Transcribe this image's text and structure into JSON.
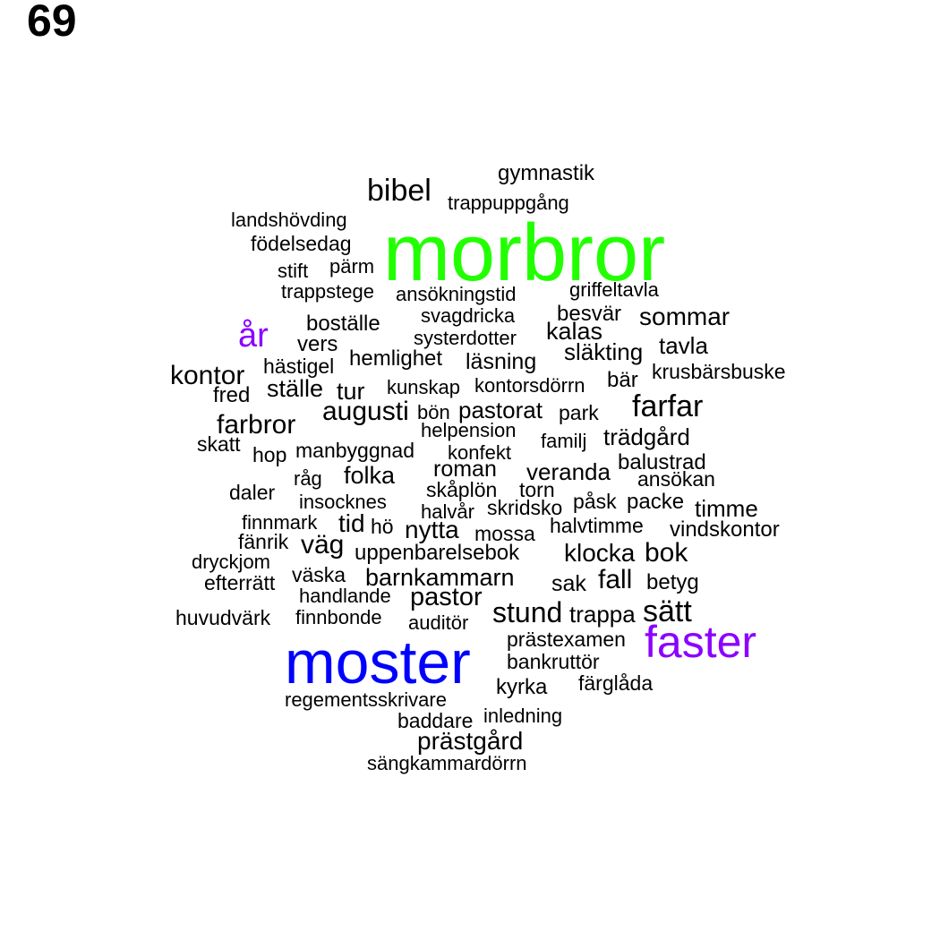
{
  "page_number": "69",
  "colors": {
    "default": "#000000",
    "green": "#22ff00",
    "blue": "#0000ff",
    "purple": "#8b00ff"
  },
  "words": [
    {
      "text": "morbror",
      "color": "green"
    },
    {
      "text": "moster",
      "color": "blue"
    },
    {
      "text": "faster",
      "color": "purple"
    },
    {
      "text": "år",
      "color": "purple"
    },
    {
      "text": "gymnastik"
    },
    {
      "text": "bibel"
    },
    {
      "text": "trappuppgång"
    },
    {
      "text": "landshövding"
    },
    {
      "text": "födelsedag"
    },
    {
      "text": "stift"
    },
    {
      "text": "pärm"
    },
    {
      "text": "trappstege"
    },
    {
      "text": "ansökningstid"
    },
    {
      "text": "griffeltavla"
    },
    {
      "text": "svagdricka"
    },
    {
      "text": "besvär"
    },
    {
      "text": "sommar"
    },
    {
      "text": "boställe"
    },
    {
      "text": "systerdotter"
    },
    {
      "text": "kalas"
    },
    {
      "text": "vers"
    },
    {
      "text": "släkting"
    },
    {
      "text": "tavla"
    },
    {
      "text": "hemlighet"
    },
    {
      "text": "läsning"
    },
    {
      "text": "hästigel"
    },
    {
      "text": "krusbärsbuske"
    },
    {
      "text": "kontor"
    },
    {
      "text": "kunskap"
    },
    {
      "text": "kontorsdörrn"
    },
    {
      "text": "bär"
    },
    {
      "text": "fred"
    },
    {
      "text": "ställe"
    },
    {
      "text": "tur"
    },
    {
      "text": "farfar"
    },
    {
      "text": "augusti"
    },
    {
      "text": "bön"
    },
    {
      "text": "pastorat"
    },
    {
      "text": "park"
    },
    {
      "text": "farbror"
    },
    {
      "text": "helpension"
    },
    {
      "text": "trädgård"
    },
    {
      "text": "skatt"
    },
    {
      "text": "familj"
    },
    {
      "text": "manbyggnad"
    },
    {
      "text": "hop"
    },
    {
      "text": "konfekt"
    },
    {
      "text": "balustrad"
    },
    {
      "text": "roman"
    },
    {
      "text": "veranda"
    },
    {
      "text": "råg"
    },
    {
      "text": "folka"
    },
    {
      "text": "ansökan"
    },
    {
      "text": "skåplön"
    },
    {
      "text": "torn"
    },
    {
      "text": "daler"
    },
    {
      "text": "insocknes"
    },
    {
      "text": "påsk"
    },
    {
      "text": "packe"
    },
    {
      "text": "halvår"
    },
    {
      "text": "skridsko"
    },
    {
      "text": "timme"
    },
    {
      "text": "finnmark"
    },
    {
      "text": "tid"
    },
    {
      "text": "hö"
    },
    {
      "text": "nytta"
    },
    {
      "text": "halvtimme"
    },
    {
      "text": "mossa"
    },
    {
      "text": "vindskontor"
    },
    {
      "text": "fänrik"
    },
    {
      "text": "väg"
    },
    {
      "text": "uppenbarelsebok"
    },
    {
      "text": "klocka"
    },
    {
      "text": "bok"
    },
    {
      "text": "dryckjom"
    },
    {
      "text": "väska"
    },
    {
      "text": "barnkammarn"
    },
    {
      "text": "fall"
    },
    {
      "text": "efterrätt"
    },
    {
      "text": "sak"
    },
    {
      "text": "betyg"
    },
    {
      "text": "handlande"
    },
    {
      "text": "pastor"
    },
    {
      "text": "stund"
    },
    {
      "text": "trappa"
    },
    {
      "text": "sätt"
    },
    {
      "text": "huvudvärk"
    },
    {
      "text": "finnbonde"
    },
    {
      "text": "auditör"
    },
    {
      "text": "prästexamen"
    },
    {
      "text": "bankruttör"
    },
    {
      "text": "kyrka"
    },
    {
      "text": "färglåda"
    },
    {
      "text": "regementsskrivare"
    },
    {
      "text": "inledning"
    },
    {
      "text": "baddare"
    },
    {
      "text": "prästgård"
    },
    {
      "text": "sängkammardörrn"
    }
  ]
}
